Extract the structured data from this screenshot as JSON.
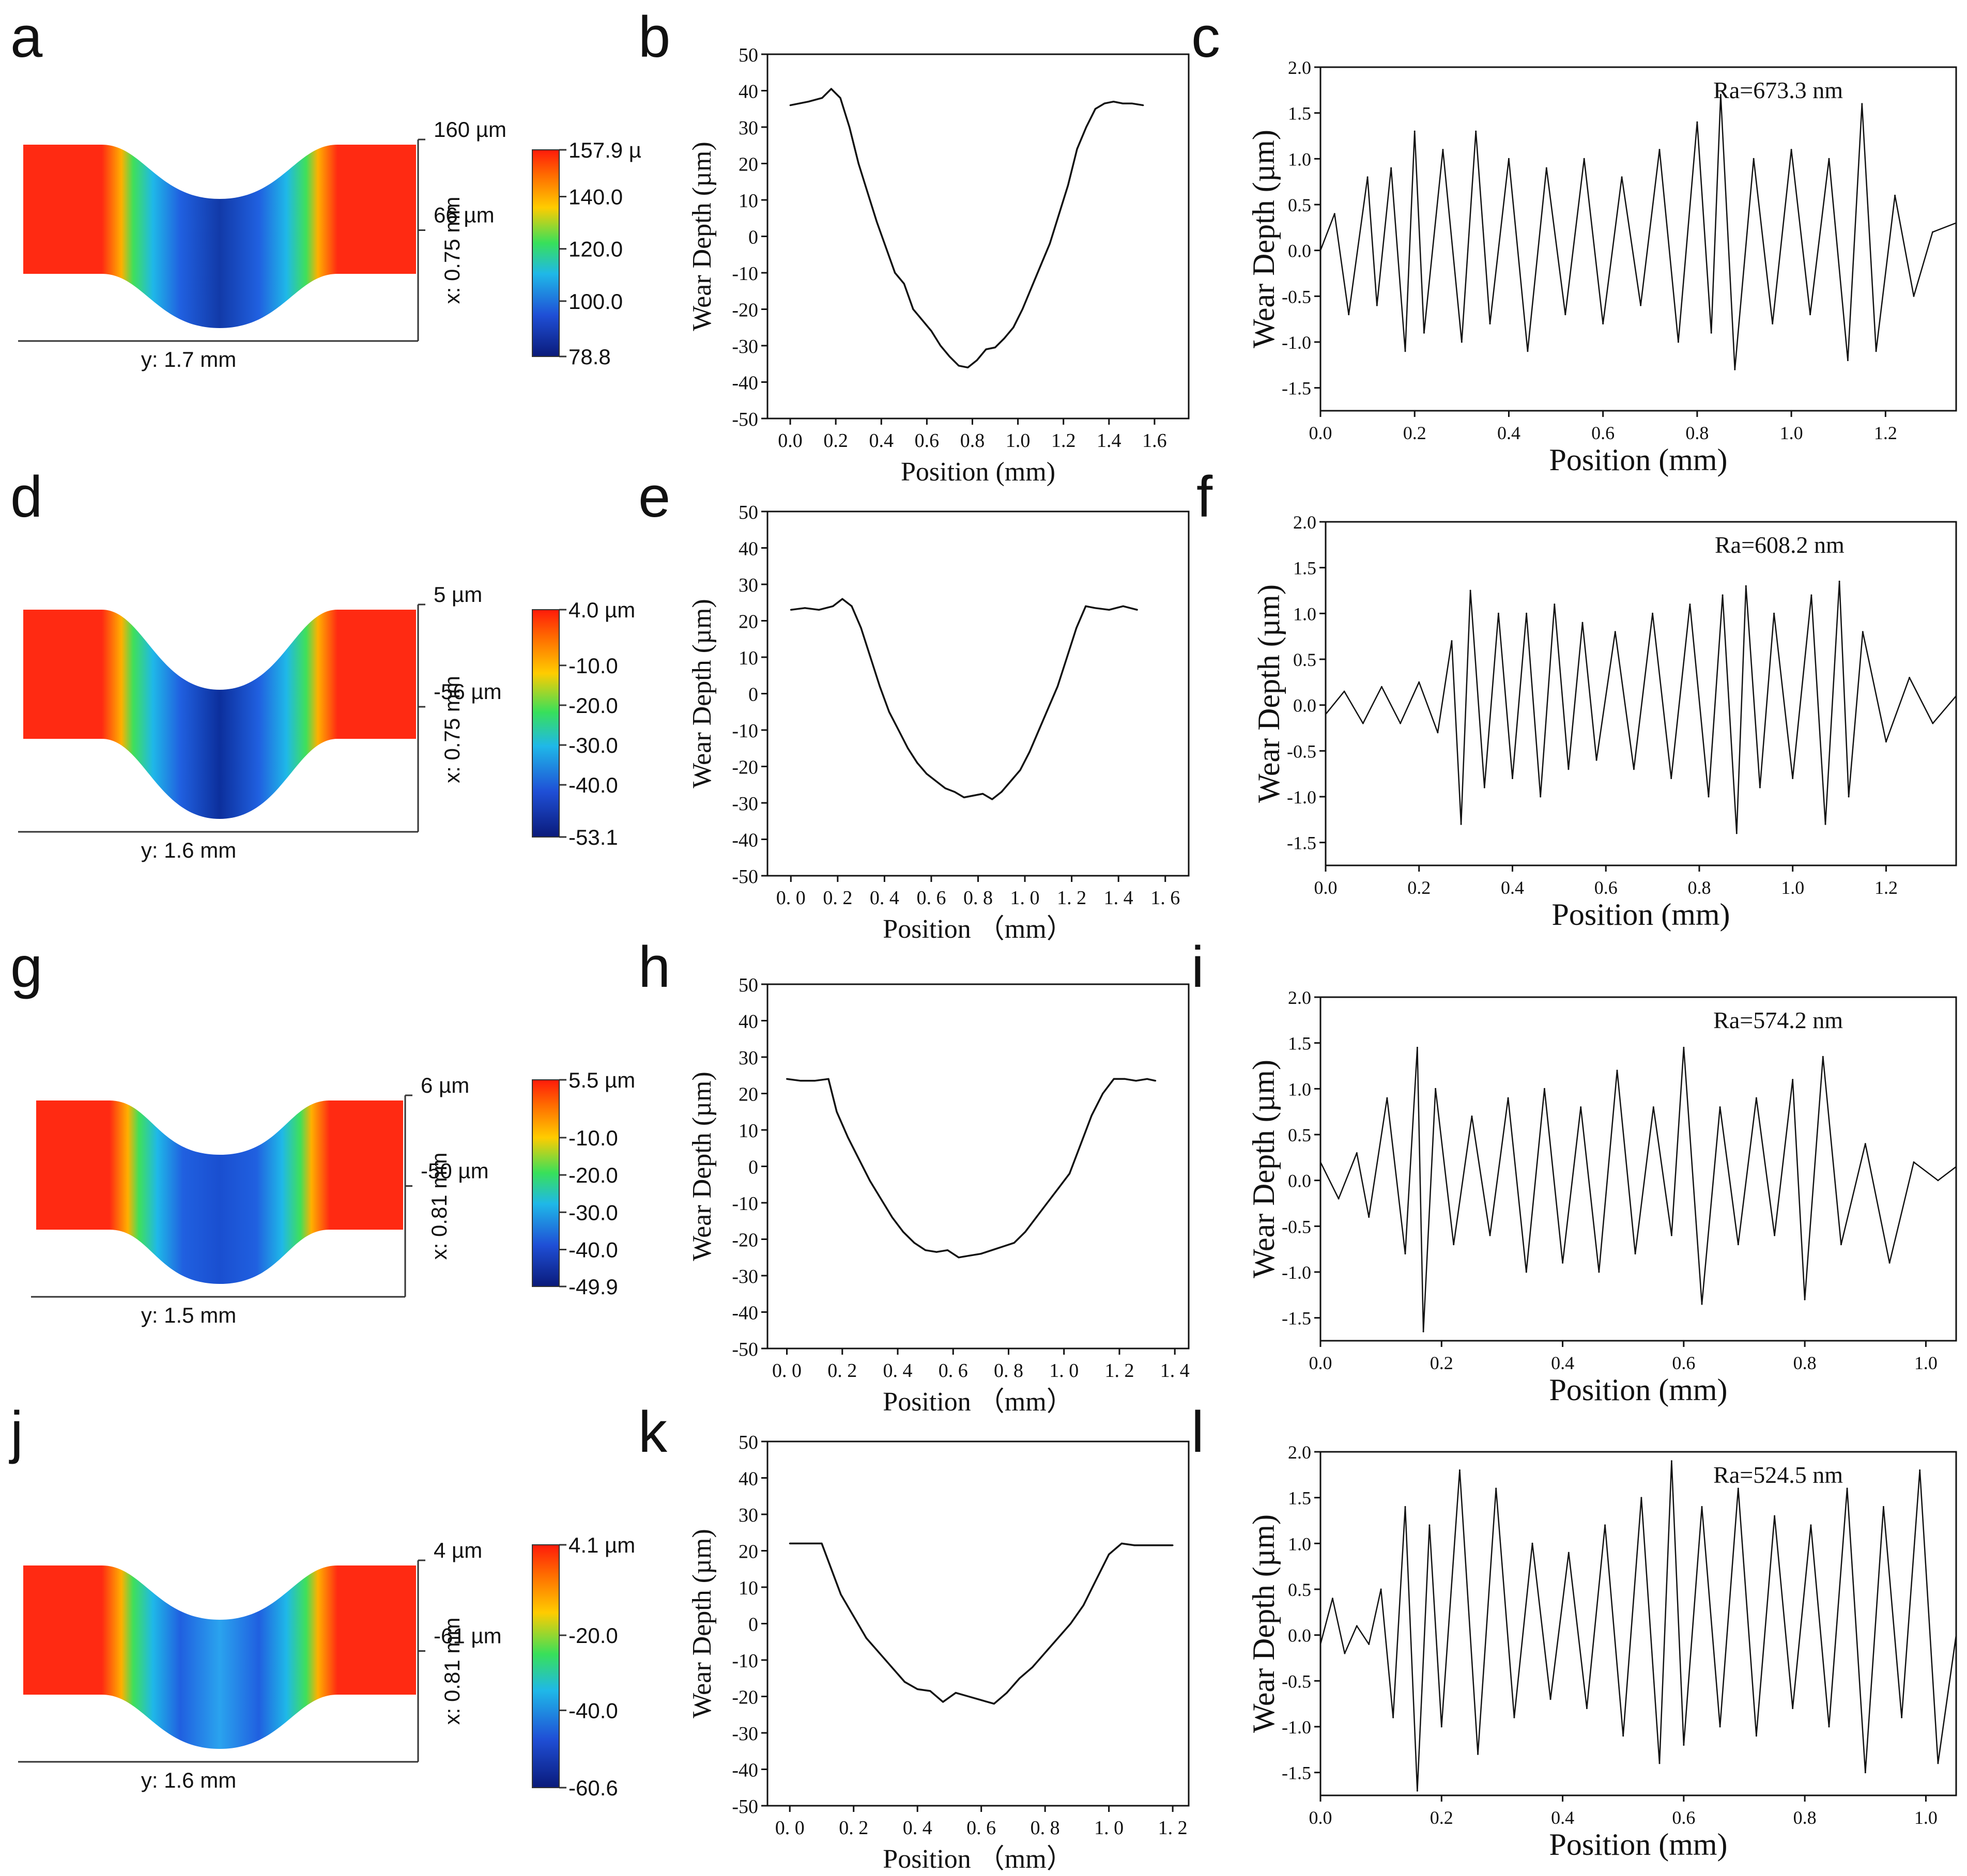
{
  "figure": {
    "rows": [
      {
        "map": {
          "letter": "a",
          "y_label": "y: 1.7 mm",
          "x_label": "x: 0.75 mm",
          "z_top": "160 µm",
          "z_mid": "66 µm",
          "colorbar_ticks": [
            "157.9 µ",
            "140.0",
            "120.0",
            "100.0",
            "78.8"
          ],
          "colorbar_values": [
            157.9,
            140.0,
            120.0,
            100.0,
            78.8
          ],
          "colorbar_range": [
            78.8,
            157.9
          ],
          "center_color": "#123aa8",
          "edge_color": "#ff2a12"
        },
        "profile_letter": "b",
        "rough_letter": "c"
      },
      {
        "map": {
          "letter": "d",
          "y_label": "y: 1.6 mm",
          "x_label": "x: 0.75 mm",
          "z_top": "5 µm",
          "z_mid": "-56 µm",
          "colorbar_ticks": [
            "4.0 µm",
            "-10.0",
            "-20.0",
            "-30.0",
            "-40.0",
            "-53.1"
          ],
          "colorbar_values": [
            4.0,
            -10.0,
            -20.0,
            -30.0,
            -40.0,
            -53.1
          ],
          "colorbar_range": [
            -53.1,
            4.0
          ],
          "center_color": "#0c2f9c",
          "edge_color": "#ff2a12"
        },
        "profile_letter": "e",
        "rough_letter": "f"
      },
      {
        "map": {
          "letter": "g",
          "y_label": "y: 1.5 mm",
          "x_label": "x: 0.81 mm",
          "z_top": "6 µm",
          "z_mid": "-50 µm",
          "colorbar_ticks": [
            "5.5 µm",
            "-10.0",
            "-20.0",
            "-30.0",
            "-40.0",
            "-49.9"
          ],
          "colorbar_values": [
            5.5,
            -10.0,
            -20.0,
            -30.0,
            -40.0,
            -49.9
          ],
          "colorbar_range": [
            -49.9,
            5.5
          ],
          "center_color": "#1a4fd0",
          "edge_color": "#ff2a12"
        },
        "profile_letter": "h",
        "rough_letter": "i"
      },
      {
        "map": {
          "letter": "j",
          "y_label": "y: 1.6 mm",
          "x_label": "x: 0.81 mm",
          "z_top": "4 µm",
          "z_mid": "-61 µm",
          "colorbar_ticks": [
            "4.1 µm",
            "-20.0",
            "-40.0",
            "-60.6"
          ],
          "colorbar_values": [
            4.1,
            -20.0,
            -40.0,
            -60.6
          ],
          "colorbar_range": [
            -60.6,
            4.1
          ],
          "center_color": "#2aa3ee",
          "edge_color": "#ff2a12"
        },
        "profile_letter": "k",
        "rough_letter": "l"
      }
    ]
  },
  "chart_data": [
    {
      "panel": "b",
      "type": "line",
      "xlabel": "Position (mm)",
      "ylabel": "Wear Depth (µm)",
      "xlim": [
        -0.1,
        1.75
      ],
      "ylim": [
        -50,
        50
      ],
      "xticks": [
        0.0,
        0.2,
        0.4,
        0.6,
        0.8,
        1.0,
        1.2,
        1.4,
        1.6
      ],
      "xtick_labels": [
        "0.0",
        "0.2",
        "0.4",
        "0.6",
        "0.8",
        "1.0",
        "1.2",
        "1.4",
        "1.6"
      ],
      "yticks": [
        50,
        40,
        30,
        20,
        10,
        0,
        -10,
        -20,
        -30,
        -40,
        -50
      ],
      "x": [
        0.0,
        0.08,
        0.14,
        0.18,
        0.22,
        0.26,
        0.3,
        0.34,
        0.38,
        0.42,
        0.46,
        0.5,
        0.54,
        0.58,
        0.62,
        0.66,
        0.7,
        0.74,
        0.78,
        0.82,
        0.86,
        0.9,
        0.94,
        0.98,
        1.02,
        1.06,
        1.1,
        1.14,
        1.18,
        1.22,
        1.26,
        1.3,
        1.34,
        1.38,
        1.42,
        1.46,
        1.5,
        1.55
      ],
      "y": [
        36,
        37,
        38,
        40.5,
        38,
        30,
        20,
        12,
        4,
        -3,
        -10,
        -13,
        -20,
        -23,
        -26,
        -30,
        -33,
        -35.5,
        -36,
        -34,
        -31,
        -30.5,
        -28,
        -25,
        -20,
        -14,
        -8,
        -2,
        6,
        14,
        24,
        30,
        35,
        36.5,
        37,
        36.5,
        36.5,
        36
      ]
    },
    {
      "panel": "c",
      "type": "line",
      "annotation": "Ra=673.3 nm",
      "xlabel": "Position (mm)",
      "ylabel": "Wear Depth (µm)",
      "xlim": [
        0.0,
        1.35
      ],
      "ylim": [
        -1.75,
        2.0
      ],
      "xticks": [
        0.0,
        0.2,
        0.4,
        0.6,
        0.8,
        1.0,
        1.2
      ],
      "xtick_labels": [
        "0.0",
        "0.2",
        "0.4",
        "0.6",
        "0.8",
        "1.0",
        "1.2"
      ],
      "yticks": [
        2.0,
        1.5,
        1.0,
        0.5,
        0.0,
        -0.5,
        -1.0,
        -1.5
      ],
      "ytick_labels": [
        "2.0",
        "1.5",
        "1.0",
        "0.5",
        "0.0",
        "-0.5",
        "-1.0",
        "-1.5"
      ],
      "x": [
        0.0,
        0.03,
        0.06,
        0.1,
        0.12,
        0.15,
        0.18,
        0.2,
        0.22,
        0.26,
        0.3,
        0.33,
        0.36,
        0.4,
        0.44,
        0.48,
        0.52,
        0.56,
        0.6,
        0.64,
        0.68,
        0.72,
        0.76,
        0.8,
        0.83,
        0.85,
        0.88,
        0.92,
        0.96,
        1.0,
        1.04,
        1.08,
        1.12,
        1.15,
        1.18,
        1.22,
        1.26,
        1.3,
        1.35
      ],
      "y": [
        0.0,
        0.4,
        -0.7,
        0.8,
        -0.6,
        0.9,
        -1.1,
        1.3,
        -0.9,
        1.1,
        -1.0,
        1.3,
        -0.8,
        1.0,
        -1.1,
        0.9,
        -0.7,
        1.0,
        -0.8,
        0.8,
        -0.6,
        1.1,
        -1.0,
        1.4,
        -0.9,
        1.7,
        -1.3,
        1.0,
        -0.8,
        1.1,
        -0.7,
        1.0,
        -1.2,
        1.6,
        -1.1,
        0.6,
        -0.5,
        0.2,
        0.3
      ]
    },
    {
      "panel": "e",
      "type": "line",
      "xlabel": "Position （mm）",
      "ylabel": "Wear Depth (µm)",
      "xlim": [
        -0.1,
        1.7
      ],
      "ylim": [
        -50,
        50
      ],
      "xticks": [
        0.0,
        0.2,
        0.4,
        0.6,
        0.8,
        1.0,
        1.2,
        1.4,
        1.6
      ],
      "xtick_labels": [
        "0. 0",
        "0. 2",
        "0. 4",
        "0. 6",
        "0. 8",
        "1. 0",
        "1. 2",
        "1. 4",
        "1. 6"
      ],
      "yticks": [
        50,
        40,
        30,
        20,
        10,
        0,
        -10,
        -20,
        -30,
        -40,
        -50
      ],
      "x": [
        0.0,
        0.06,
        0.12,
        0.18,
        0.22,
        0.26,
        0.3,
        0.34,
        0.38,
        0.42,
        0.46,
        0.5,
        0.54,
        0.58,
        0.62,
        0.66,
        0.7,
        0.74,
        0.78,
        0.82,
        0.86,
        0.9,
        0.94,
        0.98,
        1.02,
        1.06,
        1.1,
        1.14,
        1.18,
        1.22,
        1.26,
        1.3,
        1.36,
        1.42,
        1.48
      ],
      "y": [
        23,
        23.5,
        23,
        24,
        26,
        24,
        18,
        10,
        2,
        -5,
        -10,
        -15,
        -19,
        -22,
        -24,
        -26,
        -27,
        -28.5,
        -28,
        -27.5,
        -29,
        -27,
        -24,
        -21,
        -16,
        -10,
        -4,
        2,
        10,
        18,
        24,
        23.5,
        23,
        24,
        23
      ]
    },
    {
      "panel": "f",
      "type": "line",
      "annotation": "Ra=608.2 nm",
      "xlabel": "Position (mm)",
      "ylabel": "Wear Depth (µm)",
      "xlim": [
        0.0,
        1.35
      ],
      "ylim": [
        -1.75,
        2.0
      ],
      "xticks": [
        0.0,
        0.2,
        0.4,
        0.6,
        0.8,
        1.0,
        1.2
      ],
      "xtick_labels": [
        "0.0",
        "0.2",
        "0.4",
        "0.6",
        "0.8",
        "1.0",
        "1.2"
      ],
      "yticks": [
        2.0,
        1.5,
        1.0,
        0.5,
        0.0,
        -0.5,
        -1.0,
        -1.5
      ],
      "ytick_labels": [
        "2.0",
        "1.5",
        "1.0",
        "0.5",
        "0.0",
        "-0.5",
        "-1.0",
        "-1.5"
      ],
      "x": [
        0.0,
        0.04,
        0.08,
        0.12,
        0.16,
        0.2,
        0.24,
        0.27,
        0.29,
        0.31,
        0.34,
        0.37,
        0.4,
        0.43,
        0.46,
        0.49,
        0.52,
        0.55,
        0.58,
        0.62,
        0.66,
        0.7,
        0.74,
        0.78,
        0.82,
        0.85,
        0.88,
        0.9,
        0.93,
        0.96,
        1.0,
        1.04,
        1.07,
        1.1,
        1.12,
        1.15,
        1.2,
        1.25,
        1.3,
        1.35
      ],
      "y": [
        -0.1,
        0.15,
        -0.2,
        0.2,
        -0.2,
        0.25,
        -0.3,
        0.7,
        -1.3,
        1.25,
        -0.9,
        1.0,
        -0.8,
        1.0,
        -1.0,
        1.1,
        -0.7,
        0.9,
        -0.6,
        0.8,
        -0.7,
        1.0,
        -0.8,
        1.1,
        -1.0,
        1.2,
        -1.4,
        1.3,
        -0.9,
        1.0,
        -0.8,
        1.2,
        -1.3,
        1.35,
        -1.0,
        0.8,
        -0.4,
        0.3,
        -0.2,
        0.1
      ]
    },
    {
      "panel": "h",
      "type": "line",
      "xlabel": "Position （mm）",
      "ylabel": "Wear Depth (µm)",
      "xlim": [
        -0.07,
        1.45
      ],
      "ylim": [
        -50,
        50
      ],
      "xticks": [
        0.0,
        0.2,
        0.4,
        0.6,
        0.8,
        1.0,
        1.2,
        1.4
      ],
      "xtick_labels": [
        "0. 0",
        "0. 2",
        "0. 4",
        "0. 6",
        "0. 8",
        "1. 0",
        "1. 2",
        "1. 4"
      ],
      "yticks": [
        50,
        40,
        30,
        20,
        10,
        0,
        -10,
        -20,
        -30,
        -40,
        -50
      ],
      "x": [
        0.0,
        0.05,
        0.1,
        0.15,
        0.18,
        0.22,
        0.26,
        0.3,
        0.34,
        0.38,
        0.42,
        0.46,
        0.5,
        0.54,
        0.58,
        0.62,
        0.66,
        0.7,
        0.74,
        0.78,
        0.82,
        0.86,
        0.9,
        0.94,
        0.98,
        1.02,
        1.06,
        1.1,
        1.14,
        1.18,
        1.22,
        1.26,
        1.3,
        1.33
      ],
      "y": [
        24,
        23.5,
        23.5,
        24,
        15,
        8,
        2,
        -4,
        -9,
        -14,
        -18,
        -21,
        -23,
        -23.5,
        -23,
        -25,
        -24.5,
        -24,
        -23,
        -22,
        -21,
        -18,
        -14,
        -10,
        -6,
        -2,
        6,
        14,
        20,
        24,
        24,
        23.5,
        24,
        23.5
      ]
    },
    {
      "panel": "i",
      "type": "line",
      "annotation": "Ra=574.2 nm",
      "xlabel": "Position (mm)",
      "ylabel": "Wear Depth (µm)",
      "xlim": [
        0.0,
        1.05
      ],
      "ylim": [
        -1.75,
        2.0
      ],
      "xticks": [
        0.0,
        0.2,
        0.4,
        0.6,
        0.8,
        1.0
      ],
      "xtick_labels": [
        "0.0",
        "0.2",
        "0.4",
        "0.6",
        "0.8",
        "1.0"
      ],
      "yticks": [
        2.0,
        1.5,
        1.0,
        0.5,
        0.0,
        -0.5,
        -1.0,
        -1.5
      ],
      "ytick_labels": [
        "2.0",
        "1.5",
        "1.0",
        "0.5",
        "0.0",
        "-0.5",
        "-1.0",
        "-1.5"
      ],
      "x": [
        0.0,
        0.03,
        0.06,
        0.08,
        0.11,
        0.14,
        0.16,
        0.17,
        0.19,
        0.22,
        0.25,
        0.28,
        0.31,
        0.34,
        0.37,
        0.4,
        0.43,
        0.46,
        0.49,
        0.52,
        0.55,
        0.58,
        0.6,
        0.63,
        0.66,
        0.69,
        0.72,
        0.75,
        0.78,
        0.8,
        0.83,
        0.86,
        0.9,
        0.94,
        0.98,
        1.02,
        1.05
      ],
      "y": [
        0.2,
        -0.2,
        0.3,
        -0.4,
        0.9,
        -0.8,
        1.45,
        -1.65,
        1.0,
        -0.7,
        0.7,
        -0.6,
        0.9,
        -1.0,
        1.0,
        -0.9,
        0.8,
        -1.0,
        1.2,
        -0.8,
        0.8,
        -0.6,
        1.45,
        -1.35,
        0.8,
        -0.7,
        0.9,
        -0.6,
        1.1,
        -1.3,
        1.35,
        -0.7,
        0.4,
        -0.9,
        0.2,
        0.0,
        0.15
      ]
    },
    {
      "panel": "k",
      "type": "line",
      "xlabel": "Position （mm）",
      "ylabel": "Wear Depth (µm)",
      "xlim": [
        -0.07,
        1.25
      ],
      "ylim": [
        -50,
        50
      ],
      "xticks": [
        0.0,
        0.2,
        0.4,
        0.6,
        0.8,
        1.0,
        1.2
      ],
      "xtick_labels": [
        "0. 0",
        "0. 2",
        "0. 4",
        "0. 6",
        "0. 8",
        "1. 0",
        "1. 2"
      ],
      "yticks": [
        50,
        40,
        30,
        20,
        10,
        0,
        -10,
        -20,
        -30,
        -40,
        -50
      ],
      "x": [
        0.0,
        0.05,
        0.1,
        0.13,
        0.16,
        0.2,
        0.24,
        0.28,
        0.32,
        0.36,
        0.4,
        0.44,
        0.48,
        0.52,
        0.56,
        0.6,
        0.64,
        0.68,
        0.72,
        0.76,
        0.8,
        0.84,
        0.88,
        0.92,
        0.96,
        1.0,
        1.04,
        1.08,
        1.14,
        1.2
      ],
      "y": [
        22,
        22,
        22,
        15,
        8,
        2,
        -4,
        -8,
        -12,
        -16,
        -18,
        -18.5,
        -21.5,
        -19,
        -20,
        -21,
        -22,
        -19,
        -15,
        -12,
        -8,
        -4,
        0,
        5,
        12,
        19,
        22,
        21.5,
        21.5,
        21.5
      ]
    },
    {
      "panel": "l",
      "type": "line",
      "annotation": "Ra=524.5 nm",
      "xlabel": "Position (mm)",
      "ylabel": "Wear Depth (µm)",
      "xlim": [
        0.0,
        1.05
      ],
      "ylim": [
        -1.75,
        2.0
      ],
      "xticks": [
        0.0,
        0.2,
        0.4,
        0.6,
        0.8,
        1.0
      ],
      "xtick_labels": [
        "0.0",
        "0.2",
        "0.4",
        "0.6",
        "0.8",
        "1.0"
      ],
      "yticks": [
        2.0,
        1.5,
        1.0,
        0.5,
        0.0,
        -0.5,
        -1.0,
        -1.5
      ],
      "ytick_labels": [
        "2.0",
        "1.5",
        "1.0",
        "0.5",
        "0.0",
        "-0.5",
        "-1.0",
        "-1.5"
      ],
      "x": [
        0.0,
        0.02,
        0.04,
        0.06,
        0.08,
        0.1,
        0.12,
        0.14,
        0.16,
        0.18,
        0.2,
        0.23,
        0.26,
        0.29,
        0.32,
        0.35,
        0.38,
        0.41,
        0.44,
        0.47,
        0.5,
        0.53,
        0.56,
        0.58,
        0.6,
        0.63,
        0.66,
        0.69,
        0.72,
        0.75,
        0.78,
        0.81,
        0.84,
        0.87,
        0.9,
        0.93,
        0.96,
        0.99,
        1.02,
        1.05
      ],
      "y": [
        -0.1,
        0.4,
        -0.2,
        0.1,
        -0.1,
        0.5,
        -0.9,
        1.4,
        -1.7,
        1.2,
        -1.0,
        1.8,
        -1.3,
        1.6,
        -0.9,
        1.0,
        -0.7,
        0.9,
        -0.8,
        1.2,
        -1.1,
        1.5,
        -1.4,
        1.9,
        -1.2,
        1.4,
        -1.0,
        1.6,
        -1.1,
        1.3,
        -0.8,
        1.2,
        -1.0,
        1.6,
        -1.5,
        1.4,
        -0.9,
        1.8,
        -1.4,
        0.0
      ]
    }
  ]
}
